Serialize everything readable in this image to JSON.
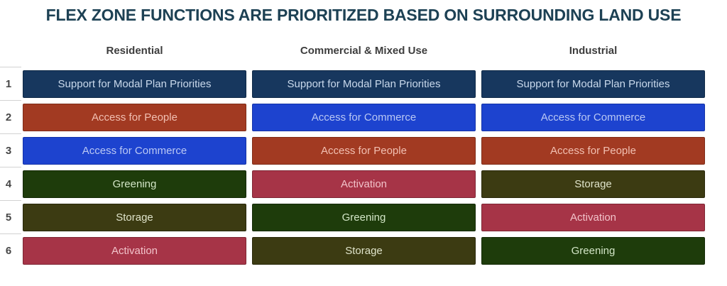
{
  "page": {
    "title": "FLEX ZONE FUNCTIONS ARE PRIORITIZED BASED ON SURROUNDING LAND USE"
  },
  "chart_data": {
    "type": "table",
    "title": "FLEX ZONE FUNCTIONS ARE PRIORITIZED BASED ON SURROUNDING LAND USE",
    "columns": [
      "Residential",
      "Commercial & Mixed Use",
      "Industrial"
    ],
    "row_labels": [
      "1",
      "2",
      "3",
      "4",
      "5",
      "6"
    ],
    "rows": [
      [
        "Support for Modal Plan Priorities",
        "Support for Modal Plan Priorities",
        "Support for Modal Plan Priorities"
      ],
      [
        "Access for People",
        "Access for Commerce",
        "Access for Commerce"
      ],
      [
        "Access for Commerce",
        "Access for People",
        "Access for People"
      ],
      [
        "Greening",
        "Activation",
        "Storage"
      ],
      [
        "Storage",
        "Greening",
        "Activation"
      ],
      [
        "Activation",
        "Storage",
        "Greening"
      ]
    ],
    "legend_position": "none",
    "grid": "off"
  },
  "function_styles": {
    "Support for Modal Plan Priorities": {
      "bg": "#17375e",
      "fg": "#c9d9ec",
      "border": "#0f2947"
    },
    "Access for People": {
      "bg": "#a23a22",
      "fg": "#f2c0b2",
      "border": "#7f2c18"
    },
    "Access for Commerce": {
      "bg": "#1d43cf",
      "fg": "#bac8f4",
      "border": "#1433a8"
    },
    "Greening": {
      "bg": "#1e3c0b",
      "fg": "#d2e5c6",
      "border": "#142a06"
    },
    "Storage": {
      "bg": "#3c3b12",
      "fg": "#dfe3ca",
      "border": "#2a290b"
    },
    "Activation": {
      "bg": "#a63447",
      "fg": "#f2c3ca",
      "border": "#7e2634"
    }
  },
  "theme": {
    "title_color": "#1d4154",
    "header_color": "#3d3d3d",
    "rank_color": "#474747",
    "separator_color": "#d2d2d2",
    "background": "#ffffff"
  }
}
